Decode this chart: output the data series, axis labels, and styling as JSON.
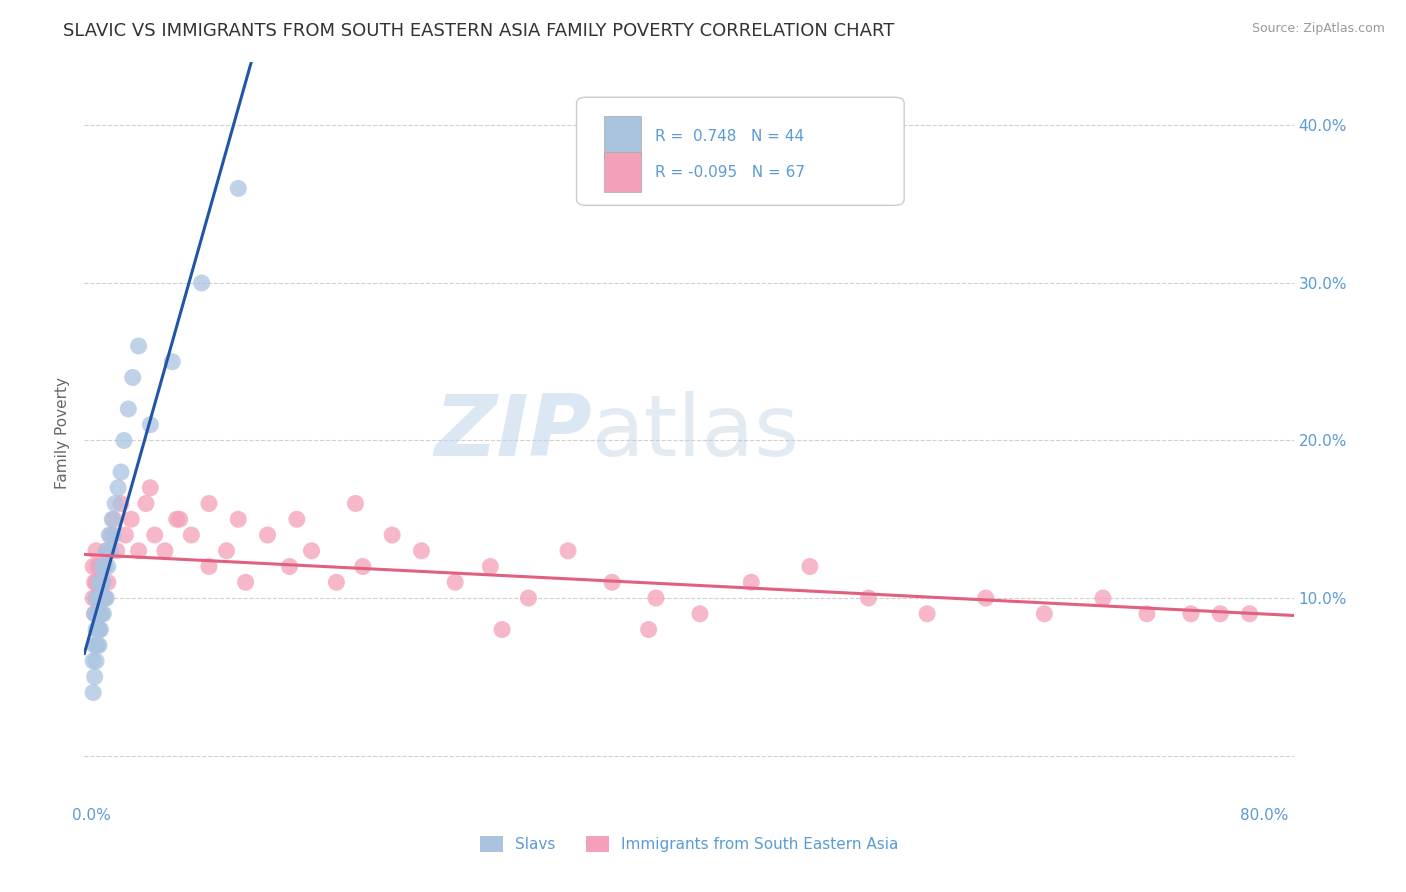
{
  "title": "SLAVIC VS IMMIGRANTS FROM SOUTH EASTERN ASIA FAMILY POVERTY CORRELATION CHART",
  "source": "Source: ZipAtlas.com",
  "tick_color": "#5b9bd5",
  "ylabel": "Family Poverty",
  "xlim": [
    -0.005,
    0.82
  ],
  "ylim": [
    -0.03,
    0.44
  ],
  "slavs_color": "#aac4e0",
  "slavs_line_color": "#2255a8",
  "sea_color": "#f4a0b8",
  "sea_line_color": "#e06080",
  "R_slavs": 0.748,
  "N_slavs": 44,
  "R_sea": -0.095,
  "N_sea": 67,
  "legend_label_slavs": "Slavs",
  "legend_label_sea": "Immigrants from South Eastern Asia",
  "watermark_zip": "ZIP",
  "watermark_atlas": "atlas",
  "title_fontsize": 13,
  "axis_label_fontsize": 11,
  "tick_fontsize": 11,
  "background_color": "#ffffff",
  "grid_color": "#d0d0d0",
  "slavs_x": [
    0.001,
    0.001,
    0.002,
    0.002,
    0.002,
    0.003,
    0.003,
    0.003,
    0.003,
    0.004,
    0.004,
    0.004,
    0.005,
    0.005,
    0.005,
    0.005,
    0.006,
    0.006,
    0.006,
    0.007,
    0.007,
    0.007,
    0.008,
    0.008,
    0.009,
    0.009,
    0.01,
    0.01,
    0.011,
    0.012,
    0.013,
    0.014,
    0.015,
    0.016,
    0.018,
    0.02,
    0.022,
    0.025,
    0.028,
    0.032,
    0.04,
    0.055,
    0.075,
    0.1
  ],
  "slavs_y": [
    0.04,
    0.06,
    0.05,
    0.07,
    0.09,
    0.06,
    0.07,
    0.08,
    0.1,
    0.07,
    0.08,
    0.09,
    0.07,
    0.08,
    0.1,
    0.11,
    0.08,
    0.09,
    0.11,
    0.09,
    0.1,
    0.12,
    0.09,
    0.11,
    0.1,
    0.12,
    0.1,
    0.13,
    0.12,
    0.14,
    0.13,
    0.15,
    0.14,
    0.16,
    0.17,
    0.18,
    0.2,
    0.22,
    0.24,
    0.26,
    0.21,
    0.25,
    0.3,
    0.36
  ],
  "sea_x": [
    0.001,
    0.001,
    0.002,
    0.002,
    0.003,
    0.003,
    0.003,
    0.004,
    0.004,
    0.005,
    0.005,
    0.005,
    0.006,
    0.006,
    0.007,
    0.008,
    0.009,
    0.01,
    0.011,
    0.013,
    0.015,
    0.017,
    0.02,
    0.023,
    0.027,
    0.032,
    0.037,
    0.043,
    0.05,
    0.058,
    0.068,
    0.08,
    0.092,
    0.105,
    0.12,
    0.135,
    0.15,
    0.167,
    0.185,
    0.205,
    0.225,
    0.248,
    0.272,
    0.298,
    0.325,
    0.355,
    0.385,
    0.415,
    0.45,
    0.49,
    0.53,
    0.57,
    0.61,
    0.65,
    0.69,
    0.72,
    0.75,
    0.77,
    0.79,
    0.04,
    0.06,
    0.08,
    0.1,
    0.14,
    0.18,
    0.28,
    0.38
  ],
  "sea_y": [
    0.1,
    0.12,
    0.09,
    0.11,
    0.1,
    0.11,
    0.13,
    0.09,
    0.12,
    0.1,
    0.11,
    0.08,
    0.1,
    0.12,
    0.11,
    0.12,
    0.1,
    0.13,
    0.11,
    0.14,
    0.15,
    0.13,
    0.16,
    0.14,
    0.15,
    0.13,
    0.16,
    0.14,
    0.13,
    0.15,
    0.14,
    0.12,
    0.13,
    0.11,
    0.14,
    0.12,
    0.13,
    0.11,
    0.12,
    0.14,
    0.13,
    0.11,
    0.12,
    0.1,
    0.13,
    0.11,
    0.1,
    0.09,
    0.11,
    0.12,
    0.1,
    0.09,
    0.1,
    0.09,
    0.1,
    0.09,
    0.09,
    0.09,
    0.09,
    0.17,
    0.15,
    0.16,
    0.15,
    0.15,
    0.16,
    0.08,
    0.08
  ]
}
